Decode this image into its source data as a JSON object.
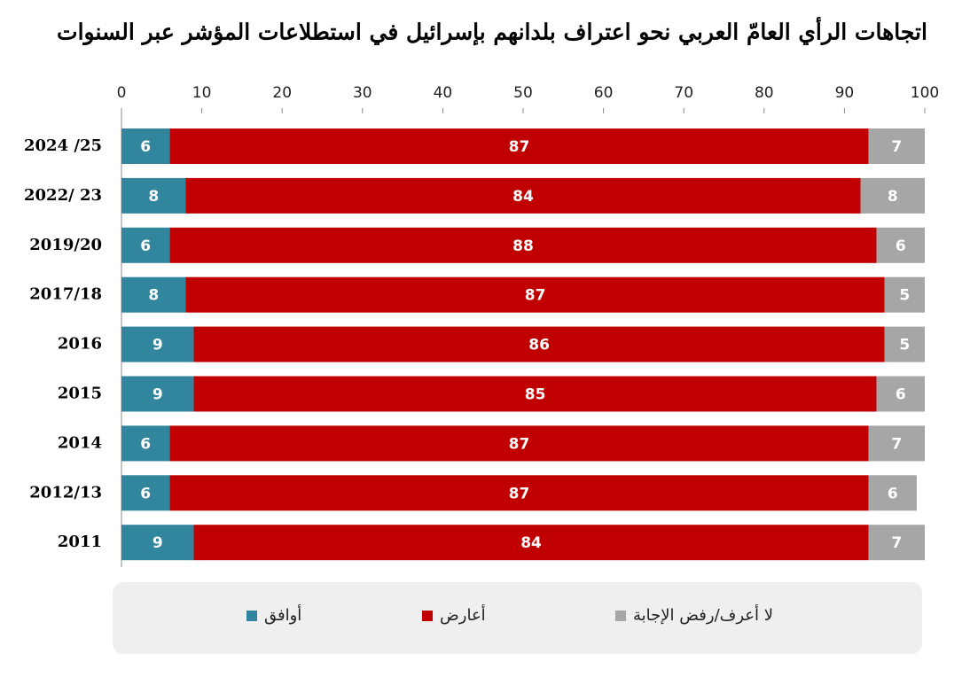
{
  "chart_data": {
    "type": "stacked-bar-horizontal",
    "title": "اتجاهات الرأي العامّ العربي نحو اعتراف بلدانهم بإسرائيل في استطلاعات المؤشر عبر السنوات",
    "categories": [
      "2024 /25",
      "2022/ 23",
      "2019/20",
      "2017/18",
      "2016",
      "2015",
      "2014",
      "2012/13",
      "2011"
    ],
    "series": [
      {
        "name": "أوافق",
        "color": "#31859c",
        "values": [
          6,
          8,
          6,
          8,
          9,
          9,
          6,
          6,
          9
        ]
      },
      {
        "name": "أعارض",
        "color": "#c00000",
        "values": [
          87,
          84,
          88,
          87,
          86,
          85,
          87,
          87,
          84
        ]
      },
      {
        "name": "لا أعرف/رفض الإجابة",
        "color": "#a6a6a6",
        "values": [
          7,
          8,
          6,
          5,
          5,
          6,
          7,
          6,
          7
        ]
      }
    ],
    "xlim": [
      0,
      100
    ],
    "xticks": [
      0,
      10,
      20,
      30,
      40,
      50,
      60,
      70,
      80,
      90,
      100
    ],
    "legend_position": "bottom"
  }
}
